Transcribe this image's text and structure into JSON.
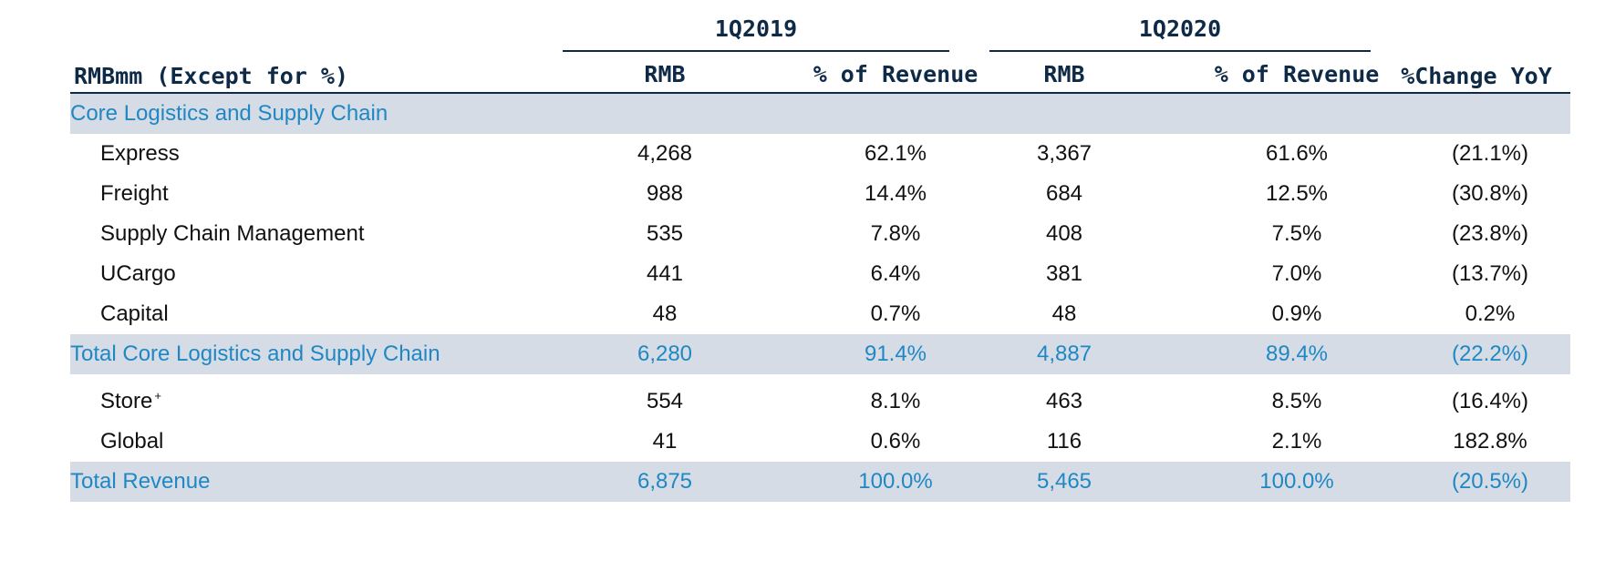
{
  "table": {
    "periods": [
      "1Q2019",
      "1Q2020"
    ],
    "unit_header": "RMBmm (Except for %)",
    "column_headers": [
      "RMB",
      "% of Revenue",
      "RMB",
      "% of Revenue",
      "%Change YoY"
    ],
    "section_core": {
      "label": "Core Logistics and Supply Chain"
    },
    "rows_core": [
      {
        "label": "Express",
        "v": [
          "4,268",
          "62.1%",
          "3,367",
          "61.6%",
          "(21.1%)"
        ]
      },
      {
        "label": "Freight",
        "v": [
          "988",
          "14.4%",
          "684",
          "12.5%",
          "(30.8%)"
        ]
      },
      {
        "label": "Supply Chain Management",
        "v": [
          "535",
          "7.8%",
          "408",
          "7.5%",
          "(23.8%)"
        ]
      },
      {
        "label": "UCargo",
        "v": [
          "441",
          "6.4%",
          "381",
          "7.0%",
          "(13.7%)"
        ]
      },
      {
        "label": "Capital",
        "v": [
          "48",
          "0.7%",
          "48",
          "0.9%",
          "0.2%"
        ]
      }
    ],
    "total_core": {
      "label": "Total Core Logistics and Supply Chain",
      "v": [
        "6,280",
        "91.4%",
        "4,887",
        "89.4%",
        "(22.2%)"
      ]
    },
    "rows_other": [
      {
        "label": "Store",
        "footnote": "+",
        "v": [
          "554",
          "8.1%",
          "463",
          "8.5%",
          "(16.4%)"
        ]
      },
      {
        "label": "Global",
        "v": [
          "41",
          "0.6%",
          "116",
          "2.1%",
          "182.8%"
        ]
      }
    ],
    "total_revenue": {
      "label": "Total Revenue",
      "v": [
        "6,875",
        "100.0%",
        "5,465",
        "100.0%",
        "(20.5%)"
      ]
    }
  }
}
